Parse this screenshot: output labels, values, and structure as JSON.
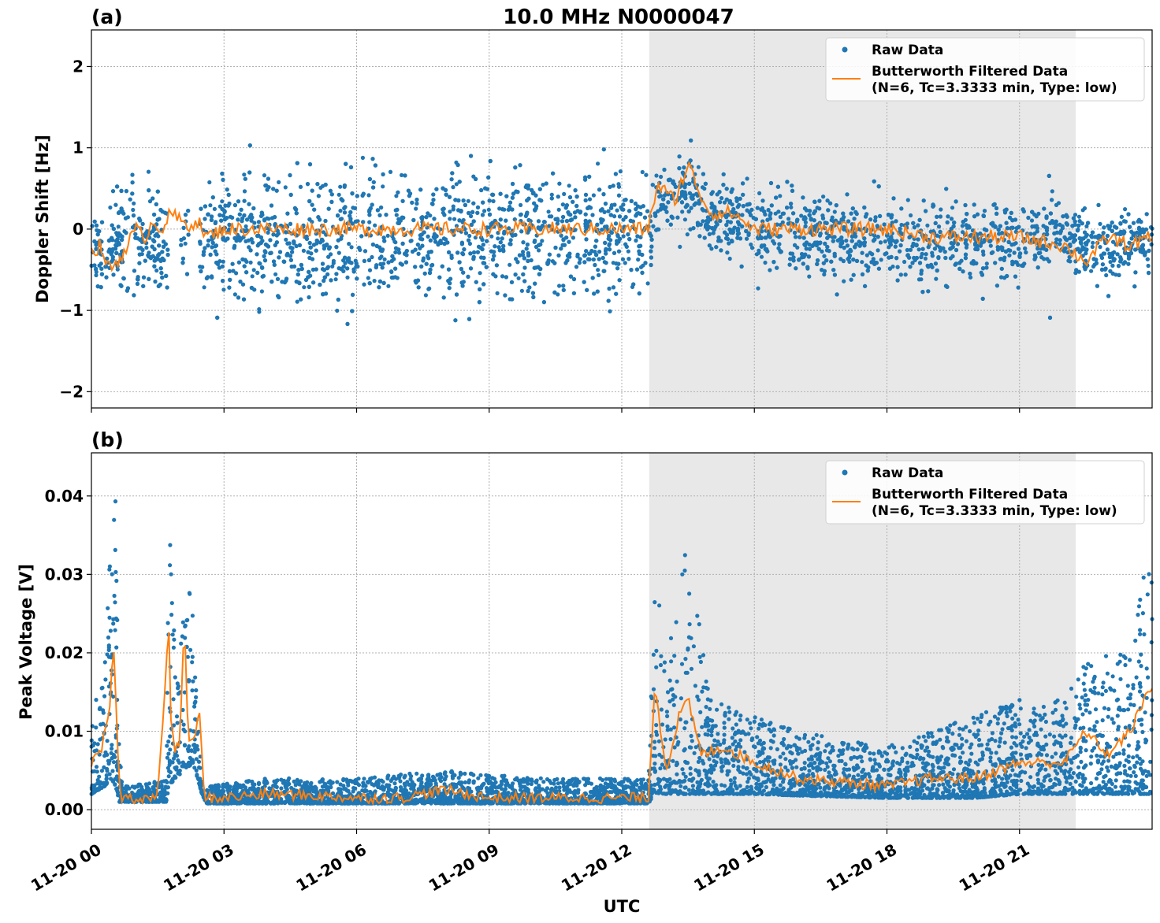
{
  "figure": {
    "title": "10.0 MHz N0000047",
    "xlabel": "UTC",
    "x_ticks": [
      "11-20 00",
      "11-20 03",
      "11-20 06",
      "11-20 09",
      "11-20 12",
      "11-20 15",
      "11-20 18",
      "11-20 21"
    ],
    "shade_hours": [
      12.62,
      22.27
    ],
    "shade_color": "#e8e8e8",
    "raw_color": "#1f77b4",
    "filt_color": "#ff7f0e"
  },
  "chart_data": [
    {
      "panel": "(a)",
      "type": "scatter",
      "ylabel": "Doppler Shift [Hz]",
      "ylim": [
        -2.2,
        2.45
      ],
      "y_ticks": [
        2,
        1,
        0,
        -1,
        -2
      ],
      "y_tick_labels": [
        "2",
        "1",
        "0",
        "−1",
        "−2"
      ],
      "xlim_hours": [
        0,
        24
      ],
      "grid": true,
      "legend_placement": "top-right",
      "series": [
        {
          "name": "Raw Data",
          "kind": "scatter",
          "envelope_hours": [
            0,
            0.5,
            0.6,
            1.1,
            1.8,
            2.5,
            2.6,
            4,
            6,
            8,
            10,
            12,
            12.6,
            12.8,
            13.5,
            14,
            16,
            18,
            20,
            22,
            22.5,
            24
          ],
          "envelope_low": [
            -1.0,
            -0.8,
            -1.2,
            -1.4,
            -0.8,
            -1.0,
            -1.2,
            -1.3,
            -1.3,
            -1.2,
            -1.2,
            -1.2,
            -1.3,
            -0.2,
            -0.3,
            -0.4,
            -0.8,
            -0.9,
            -0.9,
            -0.7,
            -0.8,
            -0.6
          ],
          "envelope_high": [
            0.4,
            0.3,
            0.8,
            1.2,
            0.5,
            0.5,
            1.0,
            1.1,
            1.1,
            1.1,
            1.1,
            1.0,
            1.0,
            0.8,
            1.2,
            0.8,
            0.7,
            0.6,
            0.6,
            0.5,
            0.4,
            0.3
          ]
        },
        {
          "name": "Butterworth Filtered Data\n(N=6, Tc=3.3333 min, Type: low)",
          "kind": "line",
          "x_hours": [
            0,
            0.2,
            0.4,
            0.6,
            0.8,
            1.0,
            1.2,
            1.4,
            1.6,
            1.8,
            2.0,
            2.2,
            2.4,
            2.6,
            3,
            4,
            5,
            6,
            7,
            8,
            9,
            10,
            11,
            12,
            12.6,
            12.8,
            13.2,
            13.5,
            13.8,
            14,
            14.5,
            15,
            16,
            17,
            18,
            19,
            20,
            21,
            22,
            22.5,
            23,
            23.5,
            24
          ],
          "y": [
            -0.3,
            -0.2,
            -0.5,
            -0.4,
            -0.2,
            0.0,
            -0.1,
            0.1,
            0.0,
            0.2,
            0.1,
            0.05,
            0.1,
            -0.1,
            0.0,
            0.0,
            0.0,
            0.0,
            0.0,
            0.0,
            0.0,
            0.0,
            0.0,
            0.0,
            0.0,
            0.55,
            0.35,
            0.8,
            0.4,
            0.2,
            0.2,
            0.0,
            0.0,
            0.0,
            0.0,
            -0.1,
            -0.1,
            -0.1,
            -0.2,
            -0.4,
            -0.1,
            -0.2,
            -0.1
          ]
        }
      ]
    },
    {
      "panel": "(b)",
      "type": "scatter",
      "ylabel": "Peak Voltage [V]",
      "ylim": [
        -0.0025,
        0.0455
      ],
      "y_ticks": [
        0.04,
        0.03,
        0.02,
        0.01,
        0.0
      ],
      "y_tick_labels": [
        "0.04",
        "0.03",
        "0.02",
        "0.01",
        "0.00"
      ],
      "xlim_hours": [
        0,
        24
      ],
      "grid": true,
      "legend_placement": "top-right",
      "series": [
        {
          "name": "Raw Data",
          "kind": "scatter",
          "envelope_hours": [
            0,
            0.3,
            0.45,
            0.55,
            0.62,
            0.7,
            1.7,
            1.75,
            1.9,
            2.1,
            2.3,
            2.5,
            2.6,
            4,
            6,
            8,
            10,
            12,
            12.6,
            12.75,
            13.0,
            13.5,
            14,
            15,
            16,
            18,
            20,
            21,
            22,
            22.6,
            23,
            23.5,
            24
          ],
          "envelope_low": [
            0.002,
            0.003,
            0.004,
            0.003,
            0.001,
            0.001,
            0.001,
            0.003,
            0.004,
            0.005,
            0.006,
            0.002,
            0.0008,
            0.0008,
            0.0008,
            0.0008,
            0.0008,
            0.0008,
            0.0008,
            0.002,
            0.002,
            0.002,
            0.002,
            0.002,
            0.0018,
            0.0015,
            0.0015,
            0.002,
            0.002,
            0.002,
            0.002,
            0.002,
            0.002
          ],
          "envelope_high": [
            0.012,
            0.02,
            0.035,
            0.04,
            0.01,
            0.003,
            0.004,
            0.038,
            0.02,
            0.032,
            0.025,
            0.003,
            0.003,
            0.004,
            0.004,
            0.005,
            0.004,
            0.004,
            0.004,
            0.03,
            0.02,
            0.035,
            0.015,
            0.012,
            0.01,
            0.008,
            0.012,
            0.014,
            0.014,
            0.02,
            0.02,
            0.02,
            0.04
          ]
        },
        {
          "name": "Butterworth Filtered Data\n(N=6, Tc=3.3333 min, Type: low)",
          "kind": "line",
          "x_hours": [
            0,
            0.2,
            0.4,
            0.5,
            0.55,
            0.62,
            0.7,
            1.0,
            1.5,
            1.75,
            1.8,
            1.9,
            2.0,
            2.1,
            2.2,
            2.3,
            2.45,
            2.55,
            3,
            4,
            5,
            6,
            7,
            8,
            9,
            10,
            11,
            12,
            12.6,
            12.75,
            13.0,
            13.3,
            13.5,
            13.8,
            14.3,
            15,
            16,
            17,
            18,
            19,
            20,
            21,
            22,
            22.5,
            23,
            23.5,
            24
          ],
          "y": [
            0.006,
            0.007,
            0.012,
            0.021,
            0.015,
            0.003,
            0.0015,
            0.0015,
            0.0015,
            0.023,
            0.012,
            0.007,
            0.009,
            0.024,
            0.008,
            0.009,
            0.012,
            0.0015,
            0.0015,
            0.002,
            0.0018,
            0.0015,
            0.0015,
            0.0025,
            0.0015,
            0.0015,
            0.0015,
            0.0015,
            0.0015,
            0.016,
            0.005,
            0.012,
            0.014,
            0.007,
            0.008,
            0.006,
            0.004,
            0.0035,
            0.003,
            0.004,
            0.004,
            0.006,
            0.006,
            0.01,
            0.007,
            0.01,
            0.016
          ]
        }
      ]
    }
  ]
}
